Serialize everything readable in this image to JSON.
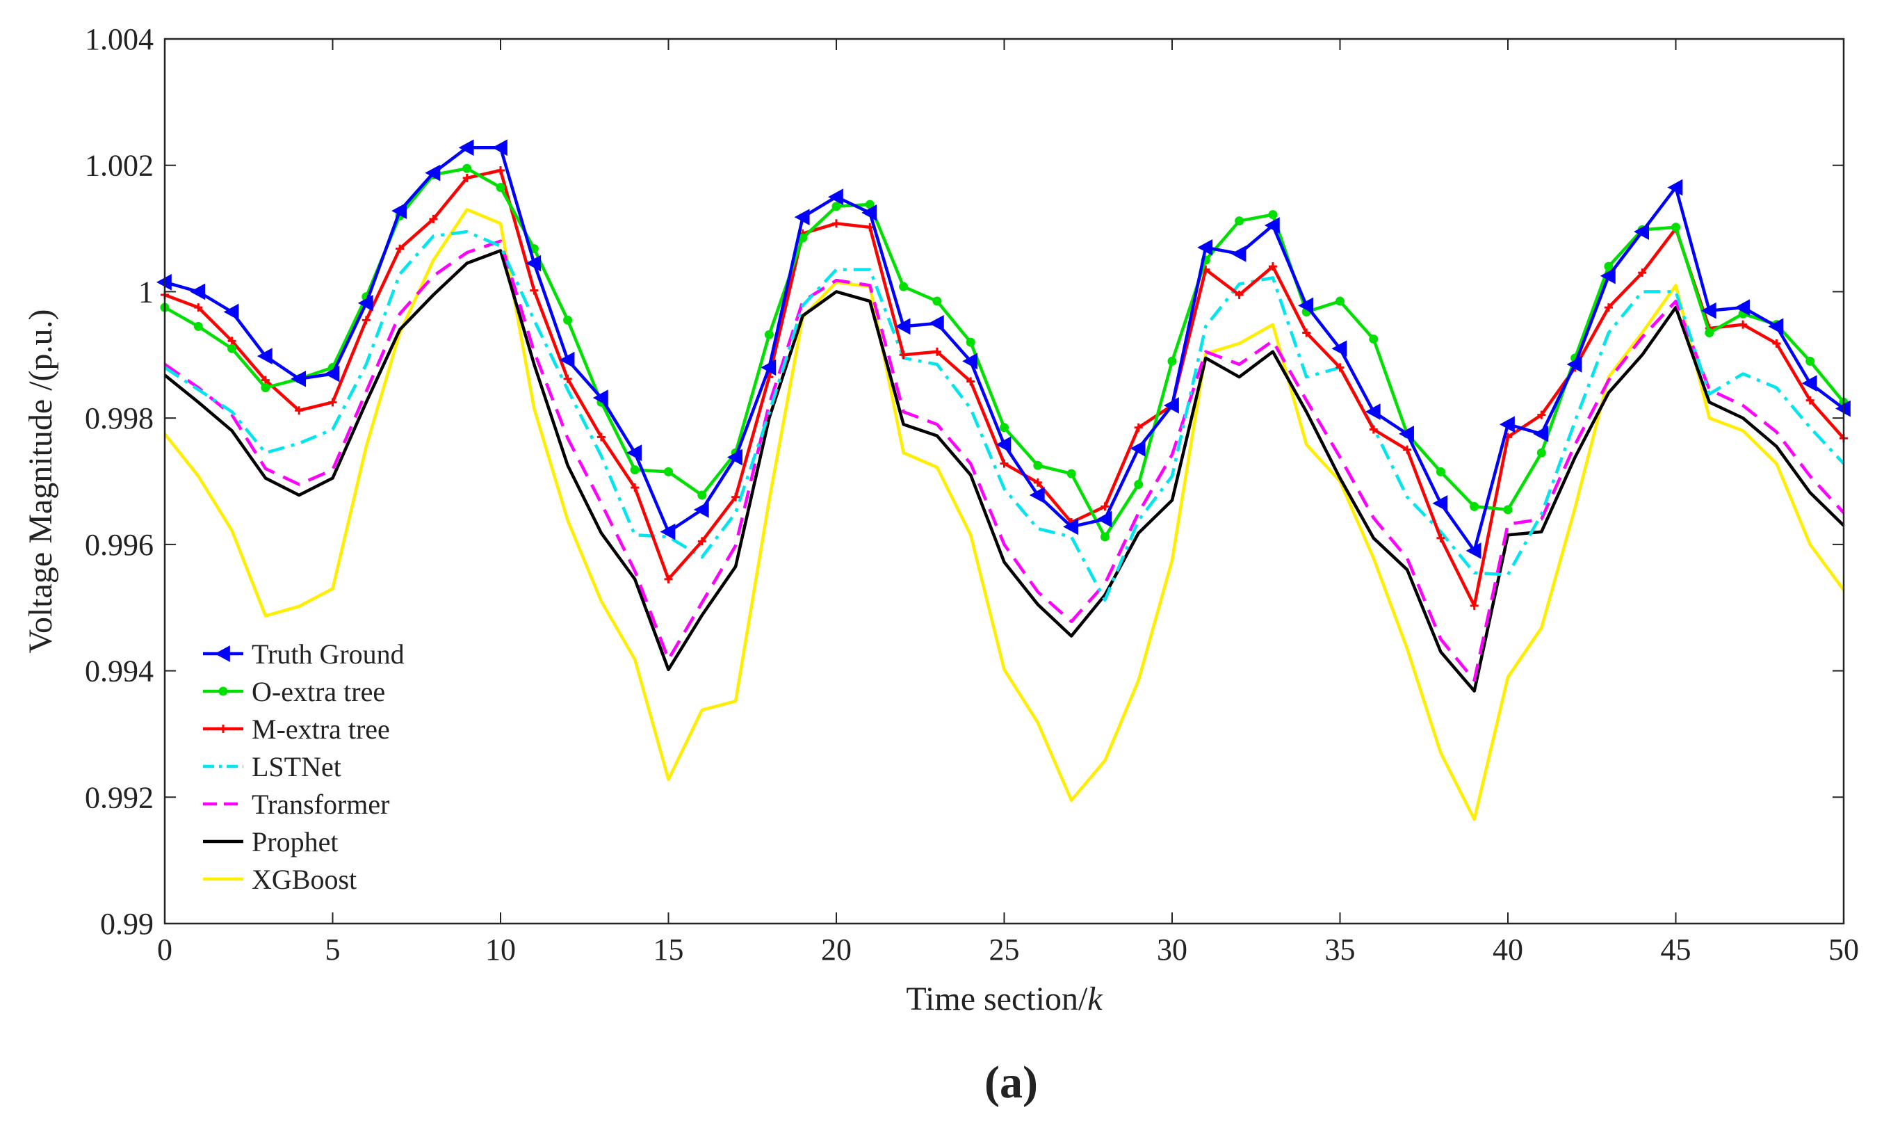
{
  "chart_data": {
    "type": "line",
    "panel_label": "(a)",
    "xlabel_text": "Time section/",
    "xlabel_var": "k",
    "ylabel": "Voltage Magnitude /(p.u.)",
    "xlim": [
      0,
      50
    ],
    "ylim": [
      0.99,
      1.004
    ],
    "x_ticks": [
      0,
      5,
      10,
      15,
      20,
      25,
      30,
      35,
      40,
      45,
      50
    ],
    "x_tick_labels": [
      "0",
      "5",
      "10",
      "15",
      "20",
      "25",
      "30",
      "35",
      "40",
      "45",
      "50"
    ],
    "y_ticks": [
      0.99,
      0.992,
      0.994,
      0.996,
      0.998,
      1.0,
      1.002,
      1.004
    ],
    "y_tick_labels": [
      "0.99",
      "0.992",
      "0.994",
      "0.996",
      "0.998",
      "1",
      "1.002",
      "1.004"
    ],
    "grid": false,
    "legend_position": "bottom-left",
    "x": [
      0,
      1,
      2,
      3,
      4,
      5,
      6,
      7,
      8,
      9,
      10,
      11,
      12,
      13,
      14,
      15,
      16,
      17,
      18,
      19,
      20,
      21,
      22,
      23,
      24,
      25,
      26,
      27,
      28,
      29,
      30,
      31,
      32,
      33,
      34,
      35,
      36,
      37,
      38,
      39,
      40,
      41,
      42,
      43,
      44,
      45,
      46,
      47,
      48,
      49,
      50
    ],
    "series": [
      {
        "name": "Truth Ground",
        "color": "#0000ff",
        "dash": "solid",
        "marker": "triangle-left",
        "values": [
          1.00015,
          1.0,
          0.99968,
          0.99898,
          0.99862,
          0.9987,
          0.99982,
          1.00128,
          1.00188,
          1.00228,
          1.00228,
          1.00045,
          0.99892,
          0.99832,
          0.99745,
          0.9962,
          0.99655,
          0.99738,
          0.9988,
          1.00118,
          1.0015,
          1.00125,
          0.99945,
          0.9995,
          0.9989,
          0.99758,
          0.99678,
          0.99628,
          0.9964,
          0.99752,
          0.9982,
          1.0007,
          1.0006,
          1.00105,
          0.99978,
          0.9991,
          0.9981,
          0.99775,
          0.99665,
          0.9959,
          0.9979,
          0.99775,
          0.99885,
          1.00025,
          1.00095,
          1.00165,
          0.9997,
          0.99975,
          0.99945,
          0.99855,
          0.99815
        ]
      },
      {
        "name": "O-extra tree",
        "color": "#00e000",
        "dash": "solid",
        "marker": "dot",
        "values": [
          0.99975,
          0.99945,
          0.9991,
          0.99848,
          0.99862,
          0.9988,
          0.99992,
          1.0012,
          1.00185,
          1.00195,
          1.00165,
          1.00068,
          0.99955,
          0.99825,
          0.99718,
          0.99715,
          0.99678,
          0.99745,
          0.99932,
          1.00085,
          1.00135,
          1.00138,
          1.00008,
          0.99985,
          0.9992,
          0.99785,
          0.99725,
          0.99712,
          0.99612,
          0.99695,
          0.9989,
          1.0005,
          1.00112,
          1.00122,
          0.99968,
          0.99985,
          0.99925,
          0.99775,
          0.99715,
          0.9966,
          0.99655,
          0.99745,
          0.99895,
          1.0004,
          1.00098,
          1.00102,
          0.99935,
          0.99965,
          0.99948,
          0.9989,
          0.99825
        ]
      },
      {
        "name": "M-extra tree",
        "color": "#ff0000",
        "dash": "solid",
        "marker": "plus",
        "values": [
          0.99995,
          0.99975,
          0.99922,
          0.9986,
          0.99812,
          0.99825,
          0.99955,
          1.00068,
          1.00115,
          1.0018,
          1.00192,
          1.00002,
          0.99862,
          0.9977,
          0.9969,
          0.99545,
          0.99605,
          0.99675,
          0.99865,
          1.00092,
          1.00108,
          1.00102,
          0.999,
          0.99905,
          0.99858,
          0.99728,
          0.99698,
          0.99635,
          0.9966,
          0.99785,
          0.9982,
          1.00035,
          0.99995,
          1.0004,
          0.99935,
          0.9988,
          0.99782,
          0.9975,
          0.9961,
          0.99503,
          0.9977,
          0.99805,
          0.9988,
          0.99975,
          1.0003,
          1.001,
          0.99942,
          0.99948,
          0.99918,
          0.99828,
          0.99768
        ]
      },
      {
        "name": "LSTNet",
        "color": "#00e5ee",
        "dash": "dashdot",
        "marker": "none",
        "values": [
          0.9988,
          0.99845,
          0.9981,
          0.99745,
          0.9976,
          0.99782,
          0.99885,
          1.00028,
          1.00088,
          1.00095,
          1.00072,
          0.99955,
          0.99845,
          0.9974,
          0.99615,
          0.99612,
          0.9958,
          0.9965,
          0.99808,
          0.99978,
          1.00035,
          1.00035,
          0.99895,
          0.99885,
          0.99815,
          0.99688,
          0.99625,
          0.99612,
          0.99512,
          0.99638,
          0.99708,
          0.99945,
          1.00012,
          1.00022,
          0.99865,
          0.9988,
          0.99785,
          0.99675,
          0.9962,
          0.99555,
          0.99552,
          0.99648,
          0.99795,
          0.99935,
          1.0,
          1.0,
          0.99838,
          0.9987,
          0.99848,
          0.99785,
          0.99728
        ]
      },
      {
        "name": "Transformer",
        "color": "#ff00ff",
        "dash": "dashed",
        "marker": "none",
        "values": [
          0.99885,
          0.99848,
          0.99805,
          0.9972,
          0.99695,
          0.99718,
          0.99842,
          0.99965,
          1.00025,
          1.00062,
          1.0008,
          0.99905,
          0.99768,
          0.99665,
          0.99558,
          0.99418,
          0.99508,
          0.99598,
          0.99822,
          0.99985,
          1.00018,
          1.0001,
          0.9981,
          0.9979,
          0.99728,
          0.996,
          0.99525,
          0.99478,
          0.99538,
          0.9965,
          0.99742,
          0.99905,
          0.99885,
          0.99922,
          0.99828,
          0.99738,
          0.99642,
          0.99578,
          0.9945,
          0.99385,
          0.99632,
          0.9964,
          0.99758,
          0.9986,
          0.99928,
          0.99985,
          0.99845,
          0.9982,
          0.99778,
          0.99708,
          0.9965
        ]
      },
      {
        "name": "Prophet",
        "color": "#000000",
        "dash": "solid",
        "marker": "none",
        "values": [
          0.99868,
          0.99825,
          0.9978,
          0.99705,
          0.99678,
          0.99705,
          0.99825,
          0.9994,
          0.99995,
          1.00045,
          1.00065,
          0.99885,
          0.99725,
          0.99618,
          0.99545,
          0.99402,
          0.99488,
          0.99565,
          0.998,
          0.99962,
          1.0,
          0.99985,
          0.9979,
          0.99772,
          0.9971,
          0.99572,
          0.99505,
          0.99455,
          0.9952,
          0.99618,
          0.9967,
          0.99895,
          0.99865,
          0.99905,
          0.9981,
          0.99705,
          0.9961,
          0.9956,
          0.9943,
          0.99368,
          0.99615,
          0.9962,
          0.99738,
          0.9984,
          0.999,
          0.99975,
          0.99825,
          0.998,
          0.99755,
          0.99682,
          0.9963
        ]
      },
      {
        "name": "XGBoost",
        "color": "#ffee00",
        "dash": "solid",
        "marker": "none",
        "values": [
          0.99775,
          0.99708,
          0.99622,
          0.99487,
          0.99502,
          0.9953,
          0.99755,
          0.99935,
          1.0005,
          1.0013,
          1.00108,
          0.99815,
          0.99638,
          0.9951,
          0.99418,
          0.99228,
          0.99338,
          0.99352,
          0.9967,
          0.9996,
          1.00015,
          1.00008,
          0.99745,
          0.99722,
          0.99615,
          0.99402,
          0.99318,
          0.99195,
          0.99258,
          0.99385,
          0.99575,
          0.99902,
          0.99918,
          0.99948,
          0.99758,
          0.997,
          0.99578,
          0.99435,
          0.9927,
          0.99165,
          0.9939,
          0.99468,
          0.99658,
          0.99865,
          0.99935,
          1.0001,
          0.998,
          0.9978,
          0.99728,
          0.996,
          0.99528
        ]
      }
    ]
  }
}
